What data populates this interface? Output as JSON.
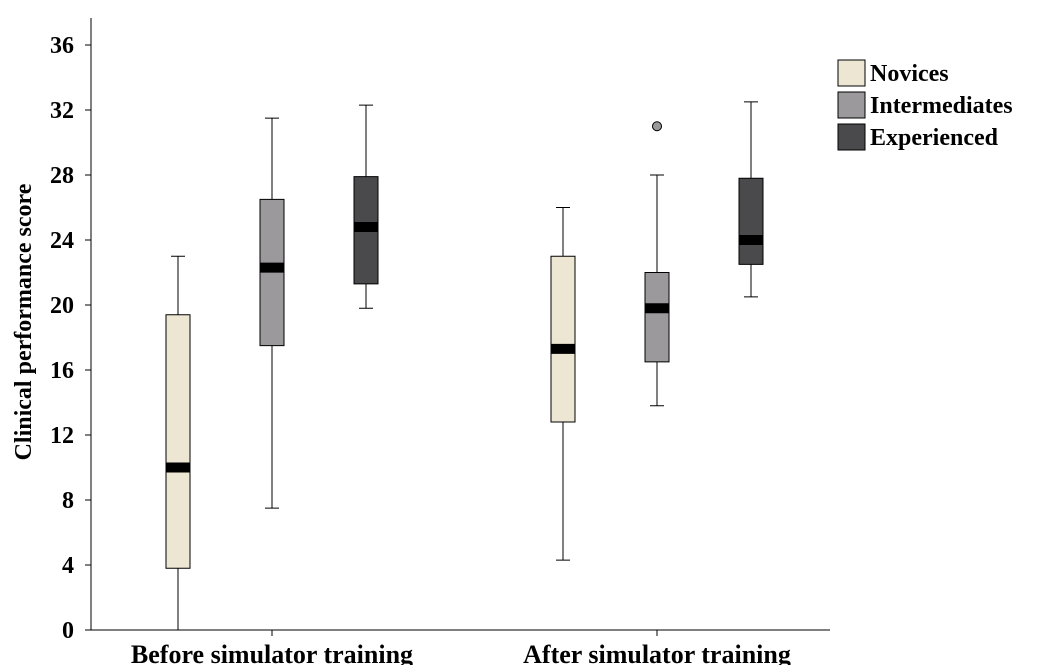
{
  "chart_data": {
    "type": "box",
    "title": "",
    "xlabel": "",
    "ylabel": "Clinical performance score",
    "ylim": [
      0,
      37
    ],
    "yticks": [
      0,
      4,
      8,
      12,
      16,
      20,
      24,
      28,
      32,
      36
    ],
    "grid": false,
    "legend_position": "top-right",
    "categories": [
      "Before simulator training",
      "After simulator training"
    ],
    "series": [
      {
        "name": "Novices",
        "color": "#ede6d3",
        "boxes": [
          {
            "min": 0,
            "q1": 3.8,
            "median": 10,
            "q3": 19.4,
            "max": 23,
            "outliers": []
          },
          {
            "min": 4.3,
            "q1": 12.8,
            "median": 17.3,
            "q3": 23,
            "max": 26,
            "outliers": []
          }
        ]
      },
      {
        "name": "Intermediates",
        "color": "#9b999b",
        "boxes": [
          {
            "min": 7.5,
            "q1": 17.5,
            "median": 22.3,
            "q3": 26.5,
            "max": 31.5,
            "outliers": []
          },
          {
            "min": 13.8,
            "q1": 16.5,
            "median": 19.8,
            "q3": 22,
            "max": 28,
            "outliers": [
              31
            ]
          }
        ]
      },
      {
        "name": "Experienced",
        "color": "#4a4a4c",
        "boxes": [
          {
            "min": 19.8,
            "q1": 21.3,
            "median": 24.8,
            "q3": 27.9,
            "max": 32.3,
            "outliers": []
          },
          {
            "min": 20.5,
            "q1": 22.5,
            "median": 24,
            "q3": 27.8,
            "max": 32.5,
            "outliers": []
          }
        ]
      }
    ]
  }
}
